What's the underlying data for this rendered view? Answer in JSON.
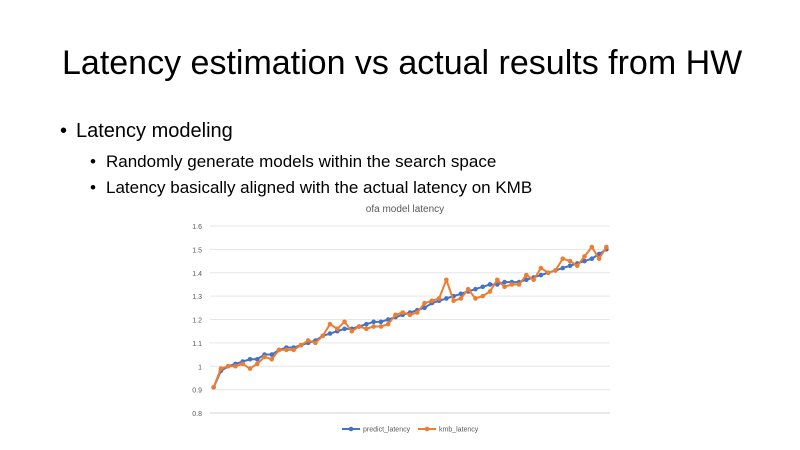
{
  "slide": {
    "title": "Latency estimation vs actual results from HW",
    "bullet_main": "Latency modeling",
    "sub_bullets": [
      "Randomly generate models within the search space",
      "Latency basically aligned with the actual latency on KMB"
    ]
  },
  "chart_data": {
    "type": "line",
    "title": "ofa model latency",
    "ylim": [
      0.8,
      1.6
    ],
    "yticks": [
      "0.8",
      "0.9",
      "1",
      "1.1",
      "1.2",
      "1.3",
      "1.4",
      "1.5",
      "1.6"
    ],
    "grid": true,
    "legend_position": "bottom",
    "x": [
      1,
      2,
      3,
      4,
      5,
      6,
      7,
      8,
      9,
      10,
      11,
      12,
      13,
      14,
      15,
      16,
      17,
      18,
      19,
      20,
      21,
      22,
      23,
      24,
      25,
      26,
      27,
      28,
      29,
      30,
      31,
      32,
      33,
      34,
      35,
      36,
      37,
      38,
      39,
      40,
      41,
      42,
      43,
      44,
      45,
      46,
      47,
      48,
      49,
      50,
      51,
      52,
      53,
      54,
      55
    ],
    "series": [
      {
        "name": "predict_latency",
        "color": "#4472C4",
        "values": [
          0.91,
          0.98,
          1.0,
          1.01,
          1.02,
          1.03,
          1.03,
          1.05,
          1.05,
          1.07,
          1.08,
          1.08,
          1.09,
          1.1,
          1.11,
          1.13,
          1.14,
          1.15,
          1.16,
          1.16,
          1.17,
          1.18,
          1.19,
          1.19,
          1.2,
          1.21,
          1.22,
          1.23,
          1.24,
          1.25,
          1.27,
          1.28,
          1.29,
          1.3,
          1.31,
          1.32,
          1.33,
          1.34,
          1.35,
          1.35,
          1.36,
          1.36,
          1.36,
          1.37,
          1.38,
          1.39,
          1.4,
          1.41,
          1.42,
          1.43,
          1.44,
          1.45,
          1.46,
          1.48,
          1.5
        ]
      },
      {
        "name": "kmb_latency",
        "color": "#ED7D31",
        "values": [
          0.91,
          0.99,
          1.0,
          1.0,
          1.01,
          0.99,
          1.01,
          1.04,
          1.03,
          1.07,
          1.07,
          1.07,
          1.09,
          1.11,
          1.1,
          1.13,
          1.18,
          1.16,
          1.19,
          1.15,
          1.17,
          1.16,
          1.17,
          1.17,
          1.18,
          1.22,
          1.23,
          1.22,
          1.23,
          1.27,
          1.28,
          1.29,
          1.37,
          1.28,
          1.29,
          1.33,
          1.29,
          1.3,
          1.32,
          1.37,
          1.34,
          1.35,
          1.35,
          1.39,
          1.37,
          1.42,
          1.4,
          1.41,
          1.46,
          1.45,
          1.43,
          1.47,
          1.51,
          1.46,
          1.51
        ]
      }
    ]
  }
}
